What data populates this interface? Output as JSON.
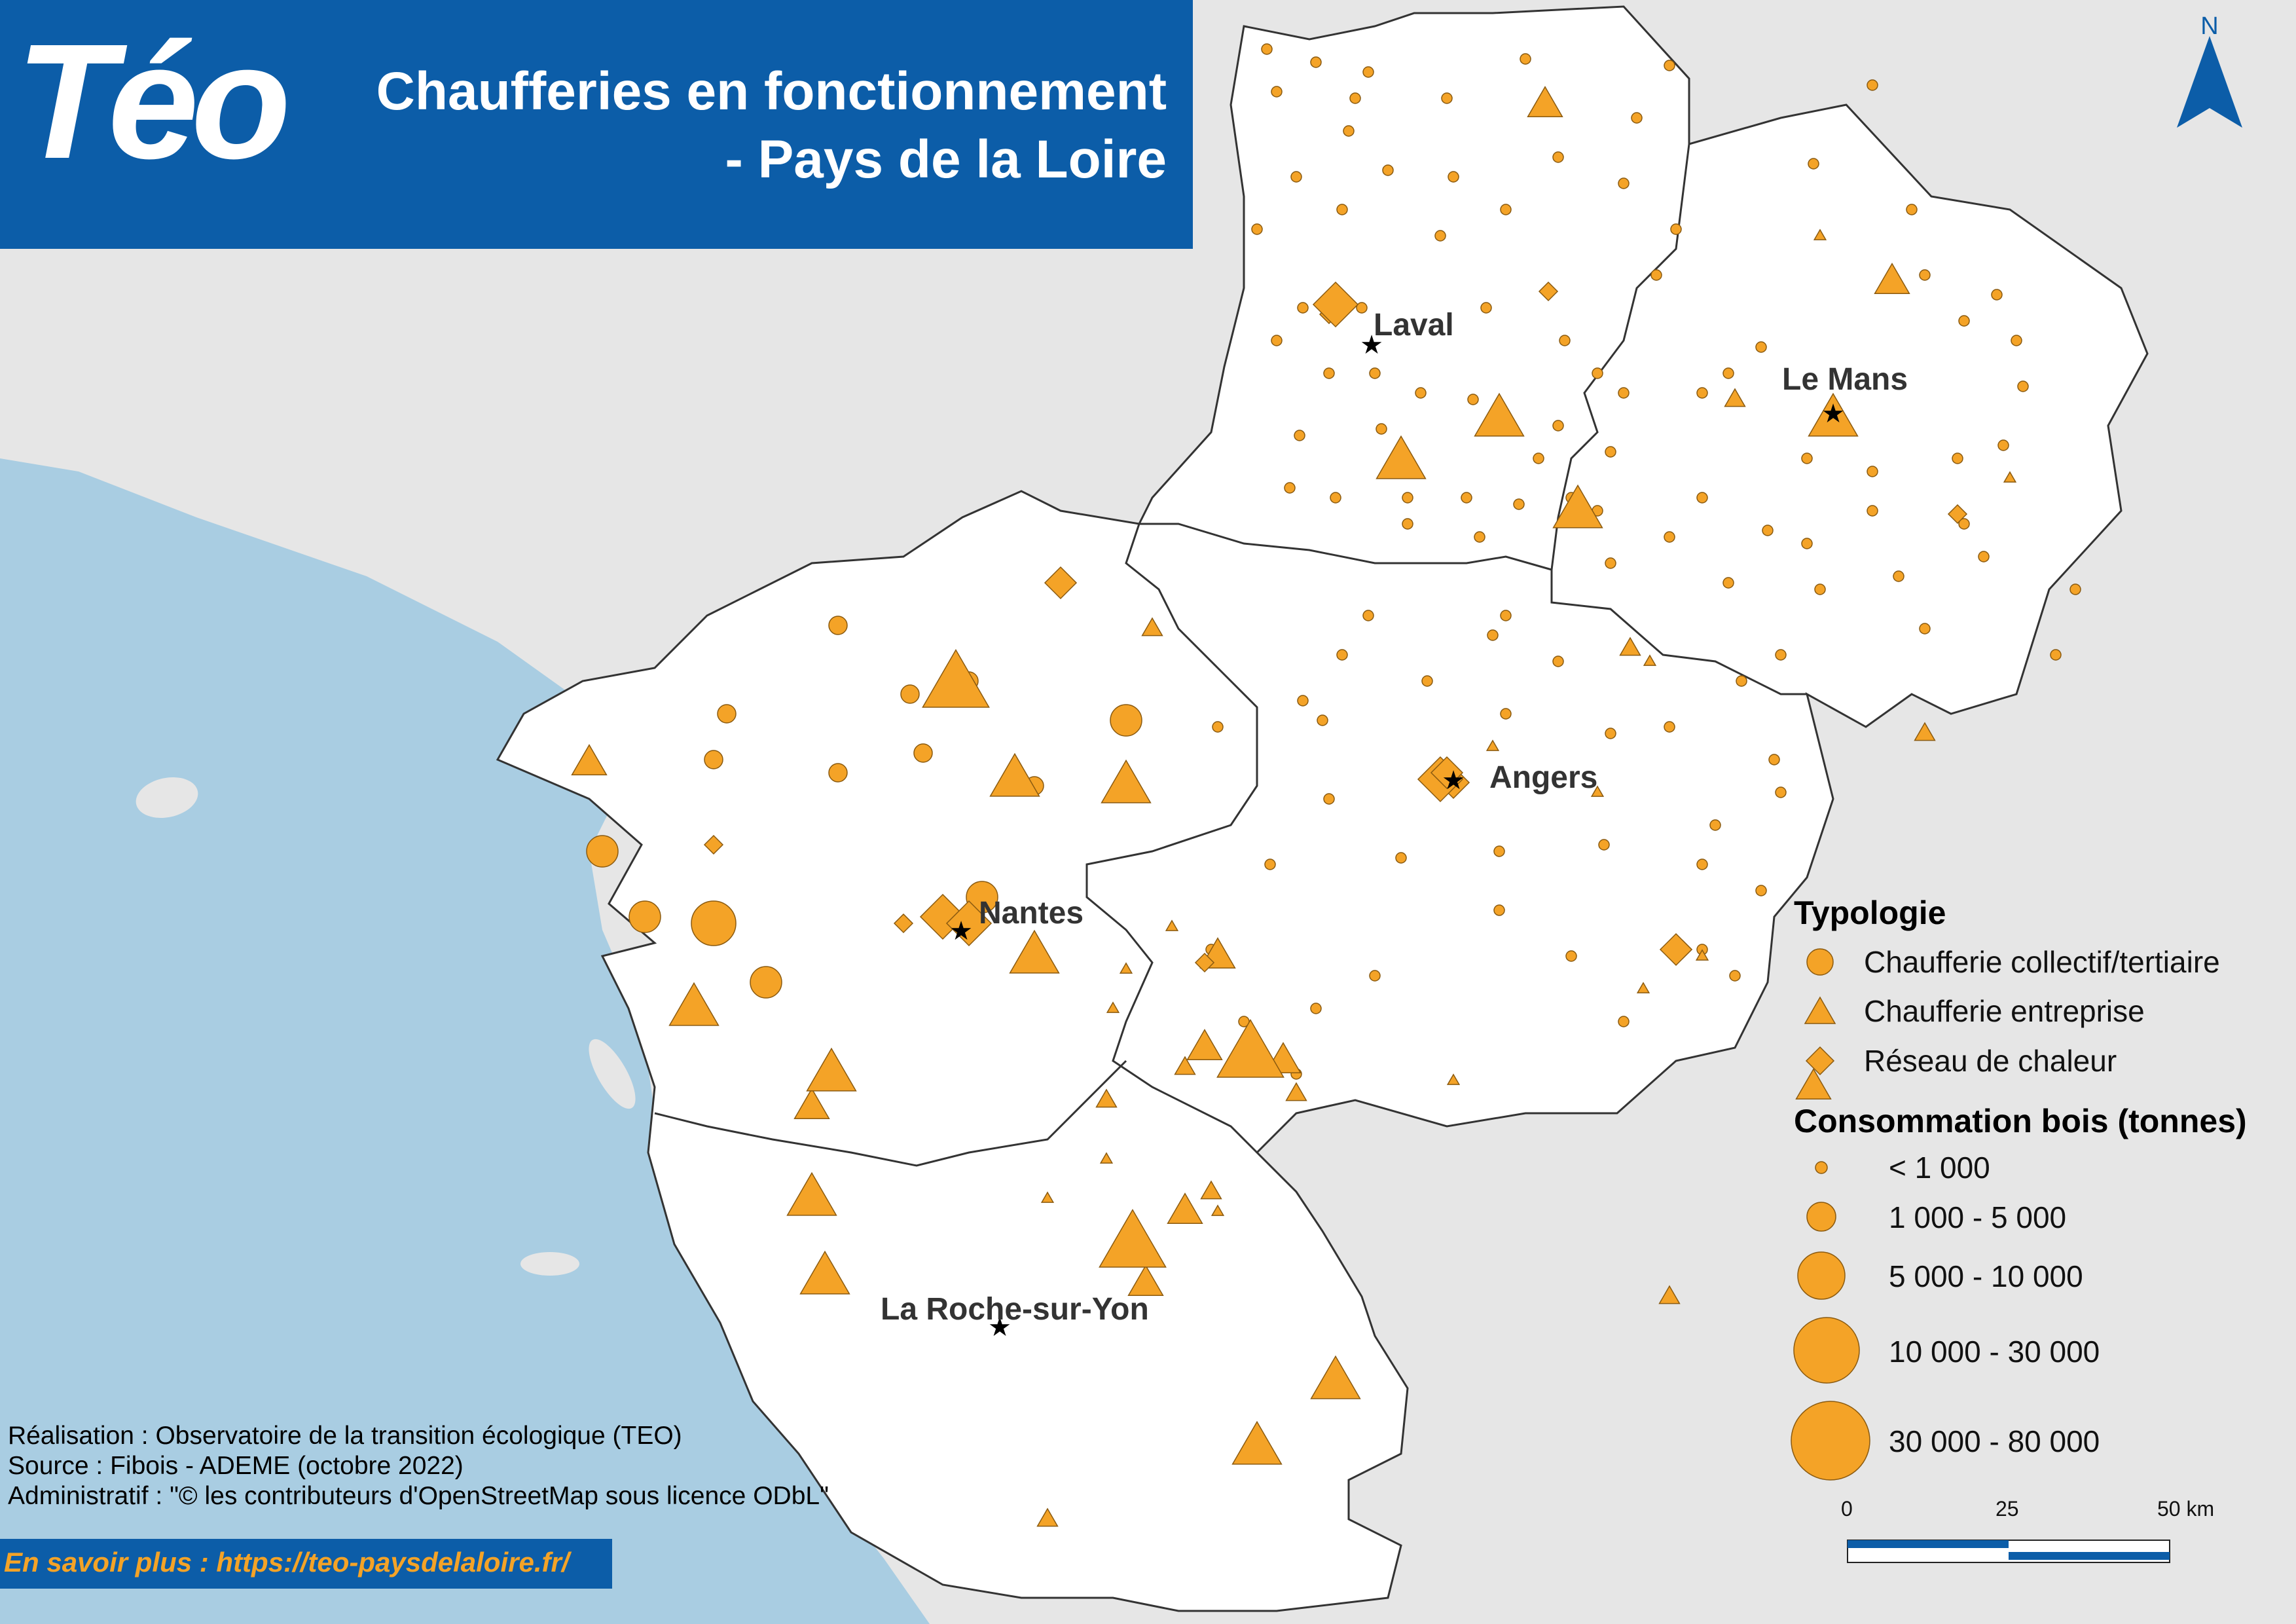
{
  "title": {
    "line1": "Chaufferies en fonctionnement",
    "line2": "- Pays de la Loire"
  },
  "logo": {
    "text": "Téo"
  },
  "north_arrow": {
    "label": "N"
  },
  "cities": [
    {
      "name": "Laval"
    },
    {
      "name": "Le Mans"
    },
    {
      "name": "Angers"
    },
    {
      "name": "Nantes"
    },
    {
      "name": "La Roche-sur-Yon"
    }
  ],
  "legend": {
    "typology_title": "Typologie",
    "types": [
      {
        "shape": "circle",
        "label": "Chaufferie collectif/tertiaire"
      },
      {
        "shape": "triangle",
        "label": "Chaufferie entreprise"
      },
      {
        "shape": "diamond",
        "label": "Réseau de chaleur"
      }
    ],
    "consumption_title": "Consommation bois (tonnes)",
    "classes": [
      {
        "label": "< 1 000"
      },
      {
        "label": "1 000 - 5 000"
      },
      {
        "label": "5 000 - 10 000"
      },
      {
        "label": "10 000 - 30 000"
      },
      {
        "label": "30 000 - 80 000"
      }
    ]
  },
  "scale_bar": {
    "labels": [
      "0",
      "25",
      "50 km"
    ]
  },
  "credits": {
    "line1": "Réalisation : Observatoire de la transition écologique (TEO)",
    "line2": "Source : Fibois - ADEME (octobre 2022)",
    "line3": "Administratif : \"© les contributeurs d'OpenStreetMap sous licence ODbL\""
  },
  "more_info": "En savoir plus : https://teo-paysdelaloire.fr/",
  "colors": {
    "sea": "#a9cde2",
    "land_outside": "#e6e6e6",
    "region": "#ffffff",
    "symbol": "#f4a327",
    "banner": "#0c5da8",
    "link": "#f4a327"
  },
  "map_data": {
    "symbols": [
      [
        "c",
        1
      ],
      [
        "c",
        1
      ],
      [
        "c",
        1
      ],
      [
        "c",
        1
      ],
      [
        "c",
        1
      ],
      [
        "c",
        1
      ],
      [
        "c",
        1
      ],
      [
        "c",
        1
      ],
      [
        "c",
        1
      ],
      [
        "c",
        1
      ],
      [
        "c",
        1
      ],
      [
        "c",
        1
      ],
      [
        "c",
        1
      ],
      [
        "c",
        1
      ],
      [
        "c",
        1
      ],
      [
        "c",
        1
      ],
      [
        "c",
        1
      ],
      [
        "c",
        1
      ],
      [
        "c",
        1
      ],
      [
        "c",
        1
      ],
      [
        "c",
        1
      ],
      [
        "c",
        1
      ],
      [
        "c",
        1
      ],
      [
        "c",
        1
      ],
      [
        "c",
        1
      ],
      [
        "c",
        1
      ],
      [
        "c",
        1
      ],
      [
        "c",
        1
      ],
      [
        "c",
        1
      ],
      [
        "c",
        1
      ],
      [
        "c",
        1
      ],
      [
        "c",
        1
      ],
      [
        "c",
        1
      ],
      [
        "c",
        1
      ],
      [
        "c",
        1
      ],
      [
        "c",
        1
      ],
      [
        "c",
        1
      ],
      [
        "c",
        1
      ],
      [
        "c",
        1
      ],
      [
        "c",
        1
      ],
      [
        "c",
        1
      ],
      [
        "c",
        1
      ],
      [
        "c",
        1
      ],
      [
        "c",
        1
      ],
      [
        "c",
        1
      ],
      [
        "c",
        1
      ],
      [
        "c",
        1
      ],
      [
        "c",
        1
      ],
      [
        "c",
        1
      ],
      [
        "c",
        1
      ],
      [
        "c",
        1
      ],
      [
        "c",
        1
      ],
      [
        "c",
        1
      ],
      [
        "c",
        1
      ],
      [
        "c",
        1
      ],
      [
        "c",
        1
      ],
      [
        "c",
        1
      ],
      [
        "c",
        1
      ],
      [
        "c",
        1
      ],
      [
        "c",
        1
      ],
      [
        "c",
        1
      ],
      [
        "c",
        1
      ],
      [
        "c",
        1
      ],
      [
        "c",
        1
      ],
      [
        "c",
        1
      ],
      [
        "c",
        1
      ],
      [
        "c",
        1
      ],
      [
        "c",
        1
      ],
      [
        "c",
        1
      ],
      [
        "c",
        1
      ],
      [
        "c",
        1
      ],
      [
        "c",
        1
      ],
      [
        "c",
        1
      ],
      [
        "c",
        1
      ],
      [
        "c",
        1
      ],
      [
        "c",
        1
      ],
      [
        "c",
        1
      ],
      [
        "c",
        1
      ],
      [
        "c",
        1
      ],
      [
        "c",
        1
      ],
      [
        "c",
        1
      ],
      [
        "c",
        1
      ],
      [
        "c",
        1
      ],
      [
        "c",
        1
      ],
      [
        "c",
        1
      ],
      [
        "c",
        1
      ],
      [
        "c",
        1
      ],
      [
        "c",
        1
      ],
      [
        "c",
        1
      ],
      [
        "c",
        1
      ],
      [
        "c",
        1
      ],
      [
        "c",
        1
      ],
      [
        "c",
        1
      ],
      [
        "c",
        1
      ],
      [
        "c",
        1
      ],
      [
        "c",
        1
      ],
      [
        "c",
        1
      ],
      [
        "c",
        1
      ],
      [
        "c",
        1
      ],
      [
        "c",
        1
      ],
      [
        "c",
        1
      ],
      [
        "c",
        1
      ],
      [
        "c",
        1
      ],
      [
        "c",
        1
      ],
      [
        "c",
        1
      ],
      [
        "c",
        1
      ],
      [
        "c",
        1
      ],
      [
        "c",
        1
      ],
      [
        "c",
        1
      ],
      [
        "c",
        1
      ],
      [
        "c",
        2
      ],
      [
        "c",
        2
      ],
      [
        "c",
        2
      ],
      [
        "c",
        2
      ],
      [
        "c",
        2
      ],
      [
        "c",
        2
      ],
      [
        "c",
        2
      ],
      [
        "c",
        2
      ],
      [
        "c",
        3
      ],
      [
        "c",
        3
      ],
      [
        "c",
        3
      ],
      [
        "c",
        4
      ],
      [
        "c",
        3
      ],
      [
        "c",
        3
      ],
      [
        "t",
        1
      ],
      [
        "t",
        1
      ],
      [
        "t",
        1
      ],
      [
        "t",
        1
      ],
      [
        "t",
        1
      ],
      [
        "t",
        1
      ],
      [
        "t",
        1
      ],
      [
        "t",
        1
      ],
      [
        "t",
        1
      ],
      [
        "t",
        1
      ],
      [
        "t",
        1
      ],
      [
        "t",
        1
      ],
      [
        "t",
        1
      ],
      [
        "t",
        1
      ],
      [
        "t",
        1
      ],
      [
        "t",
        1
      ],
      [
        "t",
        1
      ],
      [
        "t",
        1
      ],
      [
        "t",
        1
      ],
      [
        "t",
        1
      ],
      [
        "t",
        2
      ],
      [
        "t",
        2
      ],
      [
        "t",
        2
      ],
      [
        "t",
        2
      ],
      [
        "t",
        2
      ],
      [
        "t",
        2
      ],
      [
        "t",
        2
      ],
      [
        "t",
        2
      ],
      [
        "t",
        2
      ],
      [
        "t",
        2
      ],
      [
        "t",
        3
      ],
      [
        "t",
        3
      ],
      [
        "t",
        3
      ],
      [
        "t",
        3
      ],
      [
        "t",
        3
      ],
      [
        "t",
        3
      ],
      [
        "t",
        3
      ],
      [
        "t",
        3
      ],
      [
        "t",
        3
      ],
      [
        "t",
        3
      ],
      [
        "t",
        4
      ],
      [
        "t",
        4
      ],
      [
        "t",
        4
      ],
      [
        "t",
        4
      ],
      [
        "t",
        4
      ],
      [
        "t",
        5
      ],
      [
        "t",
        5
      ],
      [
        "t",
        4
      ],
      [
        "t",
        4
      ],
      [
        "t",
        4
      ],
      [
        "t",
        4
      ],
      [
        "t",
        4
      ],
      [
        "t",
        5
      ],
      [
        "t",
        4
      ],
      [
        "t",
        4
      ],
      [
        "t",
        4
      ],
      [
        "d",
        2
      ],
      [
        "d",
        2
      ],
      [
        "d",
        2
      ],
      [
        "d",
        2
      ],
      [
        "d",
        2
      ],
      [
        "d",
        2
      ],
      [
        "d",
        3
      ],
      [
        "d",
        4
      ],
      [
        "d",
        4
      ],
      [
        "d",
        3
      ],
      [
        "d",
        4
      ],
      [
        "d",
        3
      ],
      [
        "d",
        4
      ],
      [
        "d",
        3
      ],
      [
        "d",
        2
      ],
      [
        "d",
        2
      ]
    ]
  }
}
